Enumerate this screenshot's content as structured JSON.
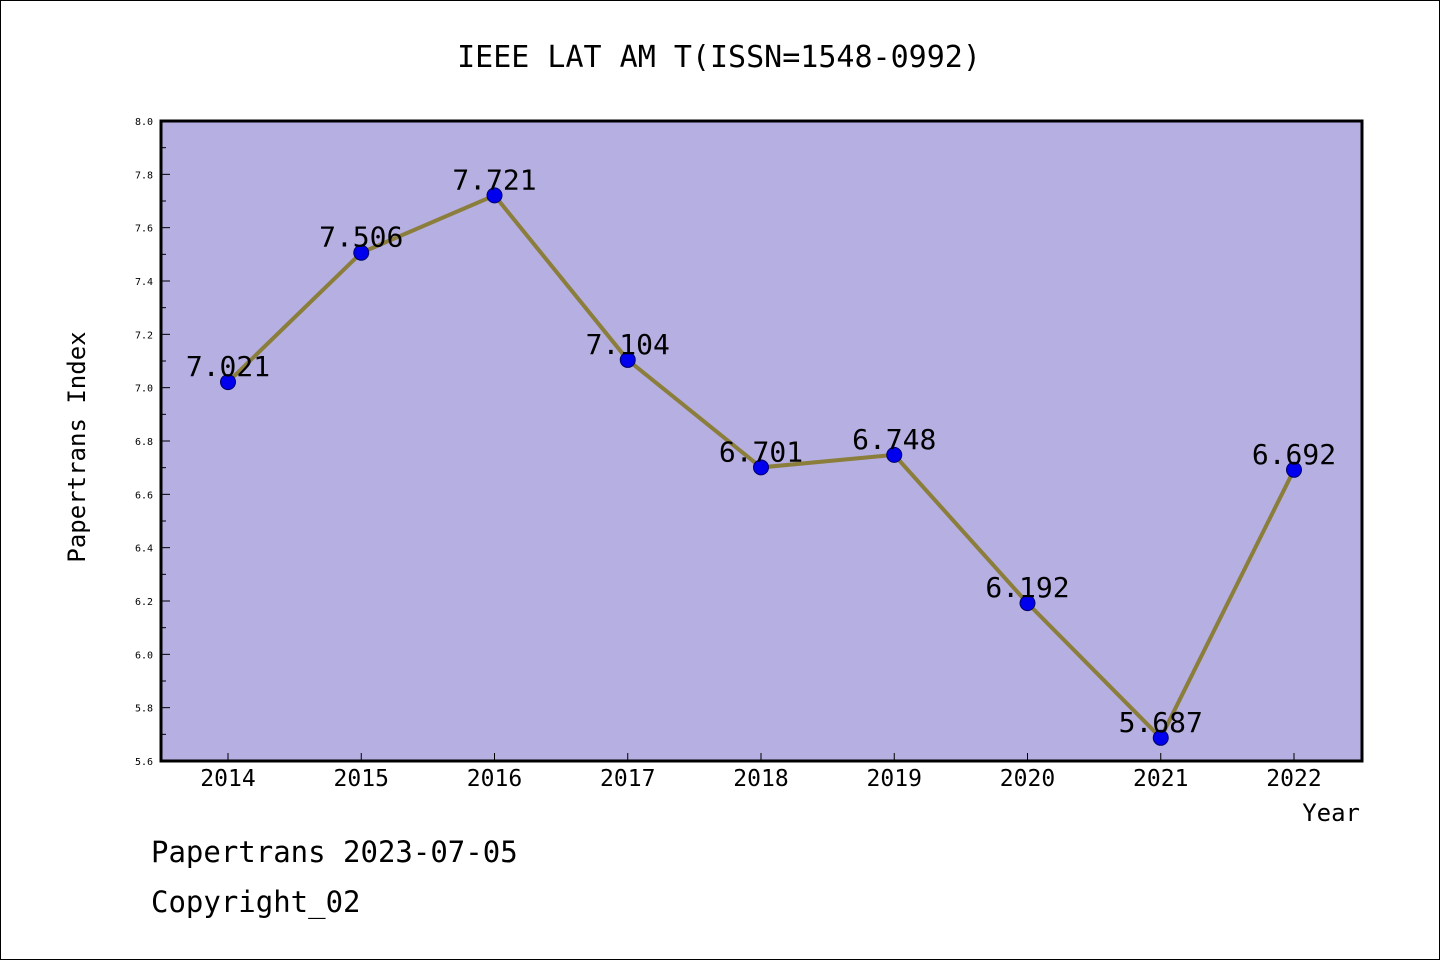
{
  "chart_data": {
    "type": "line",
    "title": "IEEE LAT AM T(ISSN=1548-0992)",
    "xlabel": "Year",
    "ylabel": "Papertrans Index",
    "categories": [
      "2014",
      "2015",
      "2016",
      "2017",
      "2018",
      "2019",
      "2020",
      "2021",
      "2022"
    ],
    "series": [
      {
        "values": [
          7.021,
          7.506,
          7.721,
          7.104,
          6.701,
          6.748,
          6.192,
          5.687,
          6.692
        ],
        "labels": [
          "7.021",
          "7.506",
          "7.721",
          "7.104",
          "6.701",
          "6.748",
          "6.192",
          "5.687",
          "6.692"
        ]
      }
    ],
    "ylim": [
      5.6,
      8.0
    ],
    "yticks": [
      "5.6",
      "5.8",
      "6.0",
      "6.2",
      "6.4",
      "6.6",
      "6.8",
      "7.0",
      "7.2",
      "7.4",
      "7.6",
      "7.8",
      "8.0"
    ],
    "grid": false,
    "colors": {
      "plot_background": "#b5afe2",
      "line": "#8b7d3a",
      "marker_fill": "#0000ee",
      "marker_stroke": "#000066"
    }
  },
  "footer": {
    "line1": "Papertrans 2023-07-05",
    "line2": "Copyright_02"
  }
}
